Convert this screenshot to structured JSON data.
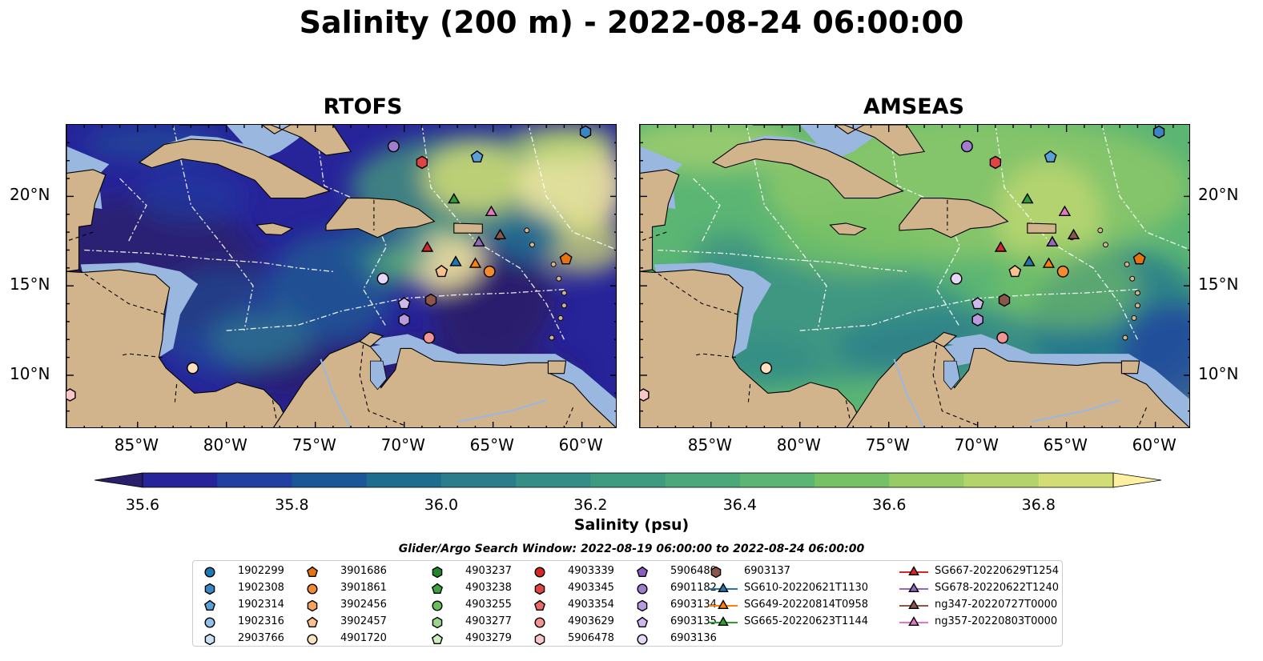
{
  "title": "Salinity (200 m) - 2022-08-24 06:00:00",
  "panels": [
    {
      "title": "RTOFS",
      "palette": "rtofs"
    },
    {
      "title": "AMSEAS",
      "palette": "amseas"
    }
  ],
  "axes": {
    "lon_ticks": [
      "85°W",
      "80°W",
      "75°W",
      "70°W",
      "65°W",
      "60°W"
    ],
    "lat_ticks": [
      "20°N",
      "15°N",
      "10°N"
    ],
    "lon_range": [
      -89,
      -58
    ],
    "lat_range": [
      7,
      24
    ]
  },
  "colorbar": {
    "label": "Salinity (psu)",
    "ticks": [
      "35.6",
      "35.8",
      "36.0",
      "36.2",
      "36.4",
      "36.6",
      "36.8"
    ],
    "range": [
      35.55,
      36.95
    ],
    "colors": [
      "#2a1f6a",
      "#27249a",
      "#223fa2",
      "#1b5798",
      "#1e6d8f",
      "#2a7e8b",
      "#348e87",
      "#3e9b80",
      "#4aa879",
      "#5bb573",
      "#76c166",
      "#96cb66",
      "#b3d46b",
      "#d2de75",
      "#fdf0a0"
    ]
  },
  "search_window": "Glider/Argo Search Window: 2022-08-19 06:00:00 to 2022-08-24 06:00:00",
  "legend": [
    {
      "label": "1902299",
      "marker": "circle",
      "color": "#1f77b4"
    },
    {
      "label": "1902308",
      "marker": "hexagon",
      "color": "#3a86c4"
    },
    {
      "label": "1902314",
      "marker": "pentagon",
      "color": "#5aa0d8"
    },
    {
      "label": "1902316",
      "marker": "circle",
      "color": "#8ec2e8"
    },
    {
      "label": "2903766",
      "marker": "hexagon",
      "color": "#c6e2f7"
    },
    {
      "label": "3901686",
      "marker": "pentagon",
      "color": "#e6730f"
    },
    {
      "label": "3901861",
      "marker": "circle",
      "color": "#f58a2e"
    },
    {
      "label": "3902456",
      "marker": "hexagon",
      "color": "#f8a35c"
    },
    {
      "label": "3902457",
      "marker": "pentagon",
      "color": "#fbc18c"
    },
    {
      "label": "4901720",
      "marker": "circle",
      "color": "#fde0bd"
    },
    {
      "label": "4903237",
      "marker": "hexagon",
      "color": "#23862a"
    },
    {
      "label": "4903238",
      "marker": "pentagon",
      "color": "#3fa13f"
    },
    {
      "label": "4903255",
      "marker": "circle",
      "color": "#6bbf5b"
    },
    {
      "label": "4903277",
      "marker": "hexagon",
      "color": "#9bd68a"
    },
    {
      "label": "4903279",
      "marker": "pentagon",
      "color": "#cdefc0"
    },
    {
      "label": "4903339",
      "marker": "circle",
      "color": "#d62728"
    },
    {
      "label": "4903345",
      "marker": "hexagon",
      "color": "#e04444"
    },
    {
      "label": "4903354",
      "marker": "pentagon",
      "color": "#ea6a6a"
    },
    {
      "label": "4903629",
      "marker": "circle",
      "color": "#f29494"
    },
    {
      "label": "5906478",
      "marker": "hexagon",
      "color": "#f8c6c6"
    },
    {
      "label": "5906480",
      "marker": "pentagon",
      "color": "#8b5fbf"
    },
    {
      "label": "6901182",
      "marker": "circle",
      "color": "#a17dcf"
    },
    {
      "label": "6903134",
      "marker": "hexagon",
      "color": "#b89ade"
    },
    {
      "label": "6903135",
      "marker": "pentagon",
      "color": "#cfb8ec"
    },
    {
      "label": "6903136",
      "marker": "circle",
      "color": "#e6d6f8"
    },
    {
      "label": "6903137",
      "marker": "hexagon",
      "color": "#8c564b"
    },
    {
      "label": "SG610-20220621T1130",
      "marker": "triangle",
      "color": "#1f77b4",
      "line": true
    },
    {
      "label": "SG649-20220814T0958",
      "marker": "triangle",
      "color": "#ff7f0e",
      "line": true
    },
    {
      "label": "SG665-20220623T1144",
      "marker": "triangle",
      "color": "#2ca02c",
      "line": true
    },
    {
      "label": "SG667-20220629T1254",
      "marker": "triangle",
      "color": "#d62728",
      "line": true
    },
    {
      "label": "SG678-20220622T1240",
      "marker": "triangle",
      "color": "#9467bd",
      "line": true
    },
    {
      "label": "ng347-20220727T0000",
      "marker": "triangle",
      "color": "#8c564b",
      "line": true
    },
    {
      "label": "ng357-20220803T0000",
      "marker": "triangle",
      "color": "#e377c2",
      "line": true
    }
  ],
  "map_markers": [
    {
      "id": "1902308",
      "marker": "hexagon",
      "color": "#3a86c4",
      "lon": -59.8,
      "lat": 23.6
    },
    {
      "id": "1902314",
      "marker": "pentagon",
      "color": "#5aa0d8",
      "lon": -65.9,
      "lat": 22.2
    },
    {
      "id": "6901182",
      "marker": "circle",
      "color": "#a17dcf",
      "lon": -70.6,
      "lat": 22.8
    },
    {
      "id": "4903345",
      "marker": "hexagon",
      "color": "#e04444",
      "lon": -69.0,
      "lat": 21.9
    },
    {
      "id": "SG665-20220623T1144",
      "marker": "triangle",
      "color": "#2ca02c",
      "lon": -67.2,
      "lat": 19.8
    },
    {
      "id": "ng357-20220803T0000",
      "marker": "triangle",
      "color": "#e377c2",
      "lon": -65.1,
      "lat": 19.1
    },
    {
      "id": "ng347-20220727T0000",
      "marker": "triangle",
      "color": "#8c564b",
      "lon": -64.6,
      "lat": 17.8
    },
    {
      "id": "SG678-20220622T1240",
      "marker": "triangle",
      "color": "#9467bd",
      "lon": -65.8,
      "lat": 17.4
    },
    {
      "id": "SG667-20220629T1254",
      "marker": "triangle",
      "color": "#d62728",
      "lon": -68.7,
      "lat": 17.1
    },
    {
      "id": "3901686",
      "marker": "pentagon",
      "color": "#e6730f",
      "lon": -60.9,
      "lat": 16.5
    },
    {
      "id": "SG610-20220621T1130",
      "marker": "triangle",
      "color": "#1f77b4",
      "lon": -67.1,
      "lat": 16.3
    },
    {
      "id": "SG649-20220814T0958",
      "marker": "triangle",
      "color": "#ff7f0e",
      "lon": -66.0,
      "lat": 16.2
    },
    {
      "id": "3902457",
      "marker": "pentagon",
      "color": "#fbc18c",
      "lon": -67.9,
      "lat": 15.8
    },
    {
      "id": "3901861",
      "marker": "circle",
      "color": "#f58a2e",
      "lon": -65.2,
      "lat": 15.8
    },
    {
      "id": "6903136",
      "marker": "circle",
      "color": "#e6d6f8",
      "lon": -71.2,
      "lat": 15.4
    },
    {
      "id": "6903137",
      "marker": "hexagon",
      "color": "#8c564b",
      "lon": -68.5,
      "lat": 14.2
    },
    {
      "id": "6903135",
      "marker": "pentagon",
      "color": "#cfb8ec",
      "lon": -70.0,
      "lat": 14.0
    },
    {
      "id": "6903134",
      "marker": "hexagon",
      "color": "#b89ade",
      "lon": -70.0,
      "lat": 13.1
    },
    {
      "id": "4903629",
      "marker": "circle",
      "color": "#f29494",
      "lon": -68.6,
      "lat": 12.1
    },
    {
      "id": "4901720",
      "marker": "circle",
      "color": "#fde0bd",
      "lon": -81.9,
      "lat": 10.4
    },
    {
      "id": "5906478",
      "marker": "hexagon",
      "color": "#f8c6c6",
      "lon": -88.8,
      "lat": 8.9
    }
  ]
}
